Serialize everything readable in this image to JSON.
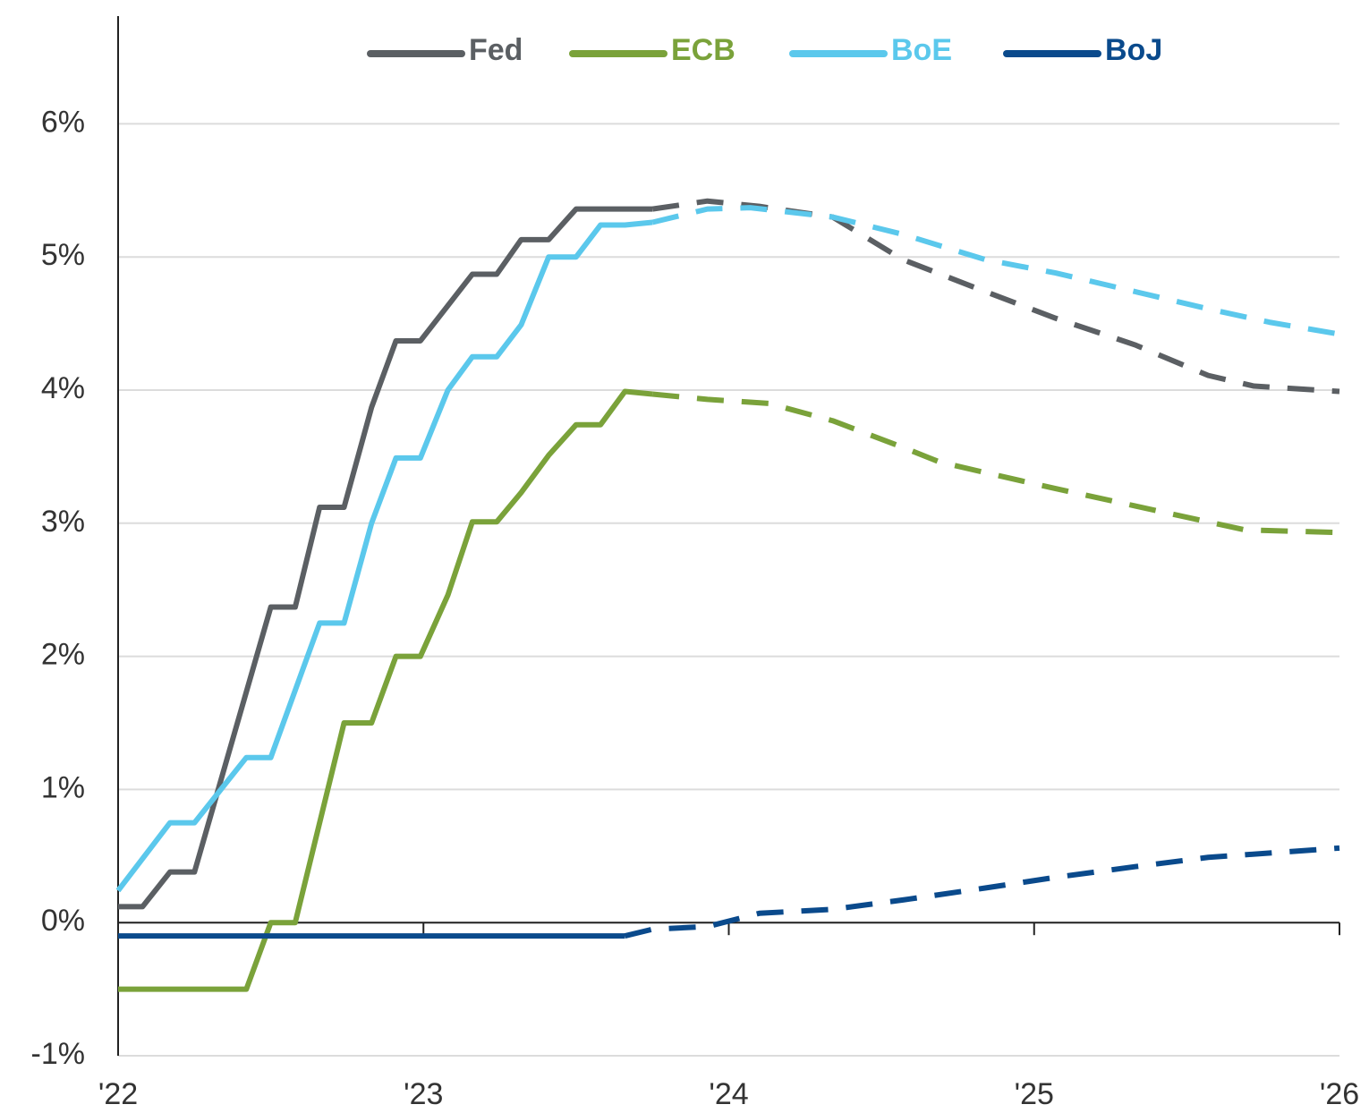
{
  "chart_data": {
    "type": "line",
    "grid": true,
    "legend": "top",
    "xlim": [
      2022,
      2026
    ],
    "xticks": [
      {
        "value": 2022,
        "label": "'22"
      },
      {
        "value": 2023,
        "label": "'23"
      },
      {
        "value": 2024,
        "label": "'24"
      },
      {
        "value": 2025,
        "label": "'25"
      },
      {
        "value": 2026,
        "label": "'26"
      }
    ],
    "ylim": [
      -1,
      6.8
    ],
    "yticks": [
      {
        "value": -1,
        "label": "-1%"
      },
      {
        "value": 0,
        "label": "0%"
      },
      {
        "value": 1,
        "label": "1%"
      },
      {
        "value": 2,
        "label": "2%"
      },
      {
        "value": 3,
        "label": "3%"
      },
      {
        "value": 4,
        "label": "4%"
      },
      {
        "value": 5,
        "label": "5%"
      },
      {
        "value": 6,
        "label": "6%"
      }
    ],
    "series": [
      {
        "name": "Fed",
        "color": "#5b5f63",
        "x": [
          2022,
          2022.08,
          2022.17,
          2022.25,
          2022.5,
          2022.58,
          2022.66,
          2022.74,
          2022.83,
          2022.91,
          2022.99,
          2023.16,
          2023.24,
          2023.32,
          2023.41,
          2023.5,
          2023.75
        ],
        "values": [
          0.12,
          0.12,
          0.38,
          0.38,
          2.37,
          2.37,
          3.12,
          3.12,
          3.87,
          4.37,
          4.37,
          4.87,
          4.87,
          5.13,
          5.13,
          5.36,
          5.36
        ],
        "forecast_x": [
          2023.75,
          2023.93,
          2024.1,
          2024.34,
          2024.57,
          2024.84,
          2025.07,
          2025.33,
          2025.57,
          2025.72,
          2026
        ],
        "forecast_values": [
          5.36,
          5.42,
          5.38,
          5.3,
          4.98,
          4.74,
          4.54,
          4.34,
          4.11,
          4.03,
          3.99
        ]
      },
      {
        "name": "ECB",
        "color": "#7aa23a",
        "x": [
          2022,
          2022.42,
          2022.5,
          2022.58,
          2022.74,
          2022.83,
          2022.91,
          2022.99,
          2023.08,
          2023.16,
          2023.24,
          2023.32,
          2023.41,
          2023.5,
          2023.58,
          2023.66,
          2023.75
        ],
        "values": [
          -0.5,
          -0.5,
          0,
          0,
          1.5,
          1.5,
          2.0,
          2.0,
          2.46,
          3.01,
          3.01,
          3.23,
          3.51,
          3.74,
          3.74,
          3.99,
          3.97
        ],
        "forecast_x": [
          2023.75,
          2023.93,
          2024.13,
          2024.34,
          2024.57,
          2024.69,
          2024.84,
          2025.07,
          2025.33,
          2025.57,
          2025.69,
          2026
        ],
        "forecast_values": [
          3.97,
          3.93,
          3.9,
          3.77,
          3.57,
          3.46,
          3.38,
          3.26,
          3.13,
          3.01,
          2.95,
          2.93
        ]
      },
      {
        "name": "BoE",
        "color": "#5bc8ec",
        "x": [
          2022,
          2022.17,
          2022.25,
          2022.42,
          2022.5,
          2022.66,
          2022.74,
          2022.83,
          2022.91,
          2022.99,
          2023.08,
          2023.16,
          2023.24,
          2023.32,
          2023.41,
          2023.5,
          2023.58,
          2023.66,
          2023.75
        ],
        "values": [
          0.24,
          0.75,
          0.75,
          1.24,
          1.24,
          2.25,
          2.25,
          3.0,
          3.49,
          3.49,
          4.0,
          4.25,
          4.25,
          4.49,
          5.0,
          5.0,
          5.24,
          5.24,
          5.26
        ],
        "forecast_x": [
          2023.75,
          2023.93,
          2024.07,
          2024.34,
          2024.57,
          2024.84,
          2025.07,
          2025.33,
          2025.57,
          2025.77,
          2026
        ],
        "forecast_values": [
          5.26,
          5.36,
          5.37,
          5.3,
          5.17,
          4.98,
          4.88,
          4.74,
          4.61,
          4.51,
          4.42
        ]
      },
      {
        "name": "BoJ",
        "color": "#0a4a8c",
        "x": [
          2022,
          2023.66
        ],
        "values": [
          -0.1,
          -0.1
        ],
        "forecast_x": [
          2023.66,
          2023.75,
          2023.93,
          2024.1,
          2024.34,
          2024.57,
          2024.84,
          2025.07,
          2025.33,
          2025.57,
          2026
        ],
        "forecast_values": [
          -0.1,
          -0.05,
          -0.03,
          0.07,
          0.1,
          0.17,
          0.26,
          0.34,
          0.42,
          0.49,
          0.56
        ]
      }
    ]
  }
}
